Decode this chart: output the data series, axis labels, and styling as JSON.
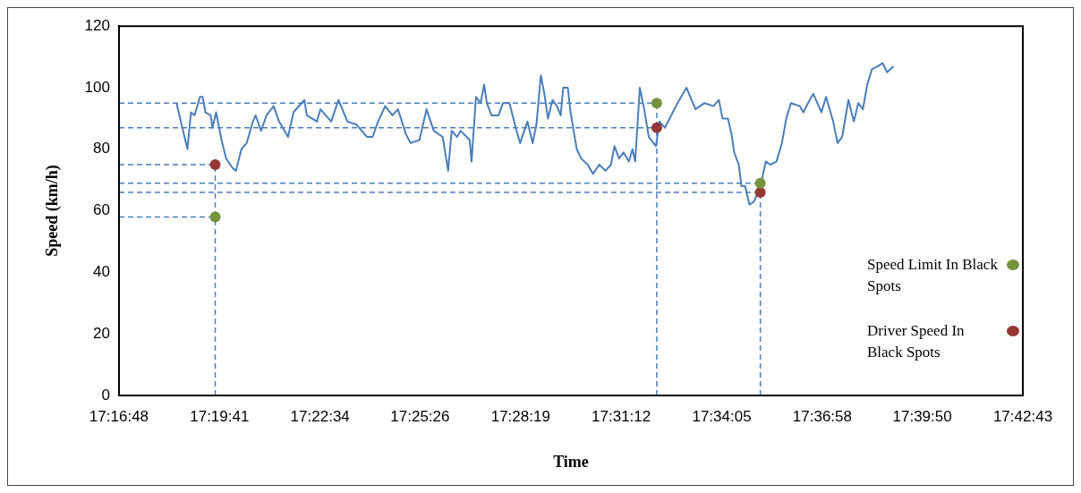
{
  "chart_data": {
    "type": "line",
    "xlabel": "Time",
    "ylabel": "Speed (km/h)",
    "xlim": [
      17.28,
      17.711944
    ],
    "xticks": [
      {
        "value": 17.28,
        "label": "17:16:48"
      },
      {
        "value": 17.328056,
        "label": "17:19:41"
      },
      {
        "value": 17.376111,
        "label": "17:22:34"
      },
      {
        "value": 17.423889,
        "label": "17:25:26"
      },
      {
        "value": 17.471944,
        "label": "17:28:19"
      },
      {
        "value": 17.52,
        "label": "17:31:12"
      },
      {
        "value": 17.568056,
        "label": "17:34:05"
      },
      {
        "value": 17.616111,
        "label": "17:36:58"
      },
      {
        "value": 17.663889,
        "label": "17:39:50"
      },
      {
        "value": 17.711944,
        "label": "17:42:43"
      }
    ],
    "ylim": [
      0,
      120
    ],
    "yticks": [
      0,
      20,
      40,
      60,
      80,
      100,
      120
    ],
    "grid": false,
    "legend": "right",
    "marker": "none",
    "line_style": "solid",
    "series": [
      {
        "type": "line",
        "color": "#4a7ebb",
        "x": [
          17.3075,
          17.3127,
          17.3144,
          17.3161,
          17.3187,
          17.32,
          17.3213,
          17.3238,
          17.3247,
          17.3264,
          17.329,
          17.3312,
          17.3342,
          17.3359,
          17.3385,
          17.341,
          17.344,
          17.3453,
          17.3479,
          17.3505,
          17.3539,
          17.3565,
          17.3608,
          17.3634,
          17.3686,
          17.3698,
          17.3746,
          17.3763,
          17.3814,
          17.3849,
          17.3892,
          17.3935,
          17.3986,
          17.4012,
          17.4038,
          17.4072,
          17.4107,
          17.4133,
          17.4171,
          17.4193,
          17.4236,
          17.427,
          17.4304,
          17.4347,
          17.4373,
          17.439,
          17.4416,
          17.4433,
          17.4476,
          17.4485,
          17.4506,
          17.4528,
          17.4545,
          17.4558,
          17.458,
          17.4614,
          17.4635,
          17.4666,
          17.47,
          17.4717,
          17.4752,
          17.4777,
          17.4795,
          17.4816,
          17.4833,
          17.485,
          17.4872,
          17.4893,
          17.4911,
          17.4923,
          17.4945,
          17.4958,
          17.4975,
          17.4988,
          17.5009,
          17.504,
          17.5065,
          17.5095,
          17.5125,
          17.5151,
          17.5168,
          17.519,
          17.5211,
          17.5237,
          17.5254,
          17.5267,
          17.5289,
          17.531,
          17.5332,
          17.5366,
          17.5383,
          17.5409,
          17.5439,
          17.5469,
          17.5512,
          17.5555,
          17.5598,
          17.5641,
          17.5667,
          17.5684,
          17.571,
          17.5727,
          17.574,
          17.5762,
          17.5775,
          17.5792,
          17.5813,
          17.5835,
          17.5869,
          17.5891,
          17.5912,
          17.5942,
          17.5968,
          17.5989,
          17.6011,
          17.6054,
          17.6071,
          17.6093,
          17.6118,
          17.6157,
          17.6179,
          17.6213,
          17.6234,
          17.6256,
          17.6286,
          17.6312,
          17.6333,
          17.6355,
          17.6376,
          17.6398,
          17.6428,
          17.6449,
          17.6471,
          17.6501
        ],
        "values": [
          95,
          80,
          92,
          91,
          97,
          97,
          92,
          91,
          87,
          92,
          83,
          77,
          74,
          73,
          80,
          82,
          89,
          91,
          86,
          91,
          94,
          89,
          84,
          92,
          96,
          91,
          89,
          93,
          89,
          96,
          89,
          88,
          84,
          84,
          89,
          94,
          91,
          93,
          85,
          82,
          83,
          93,
          86,
          84,
          73,
          86,
          84,
          86,
          83,
          76,
          97,
          95,
          101,
          95,
          91,
          91,
          95,
          95,
          86,
          82,
          89,
          82,
          88,
          104,
          98,
          90,
          96,
          94,
          91,
          100,
          100,
          92,
          85,
          80,
          77,
          75,
          72,
          75,
          73,
          75,
          81,
          77,
          79,
          76,
          80,
          76,
          100,
          93,
          84,
          81,
          89,
          87,
          91,
          95,
          100,
          93,
          95,
          94,
          96,
          90,
          90,
          85,
          79,
          75,
          68,
          68,
          62,
          63,
          69,
          76,
          75,
          76,
          82,
          90,
          95,
          94,
          92,
          95,
          98,
          92,
          97,
          89,
          82,
          84,
          96,
          89,
          95,
          93,
          101,
          106,
          107,
          108,
          105,
          107
        ]
      },
      {
        "type": "scatter",
        "name": "Speed Limit In Black Spots",
        "color": "#77933c",
        "marker": "circle",
        "x": [
          17.326,
          17.537,
          17.5865
        ],
        "values": [
          58,
          95,
          69
        ]
      },
      {
        "type": "scatter",
        "name": "Driver Speed In Black Spots",
        "color": "#953735",
        "marker": "circle",
        "x": [
          17.326,
          17.537,
          17.5865
        ],
        "values": [
          75,
          87,
          66
        ]
      }
    ],
    "ref_lines": [
      {
        "axis": "y",
        "value": 95,
        "color": "#4a7ebb",
        "line_style": "dashed"
      },
      {
        "axis": "y",
        "value": 87,
        "color": "#4a7ebb",
        "line_style": "dashed"
      },
      {
        "axis": "y",
        "value": 75,
        "color": "#4a7ebb",
        "line_style": "dashed"
      },
      {
        "axis": "y",
        "value": 69,
        "color": "#4a7ebb",
        "line_style": "dashed"
      },
      {
        "axis": "y",
        "value": 66,
        "color": "#4a7ebb",
        "line_style": "dashed"
      },
      {
        "axis": "y",
        "value": 58,
        "color": "#4a7ebb",
        "line_style": "dashed"
      },
      {
        "axis": "x",
        "value": 17.326,
        "color": "#4a7ebb",
        "line_style": "dashed"
      },
      {
        "axis": "x",
        "value": 17.537,
        "color": "#4a7ebb",
        "line_style": "dashed"
      },
      {
        "axis": "x",
        "value": 17.5865,
        "color": "#4a7ebb",
        "line_style": "dashed"
      }
    ]
  }
}
